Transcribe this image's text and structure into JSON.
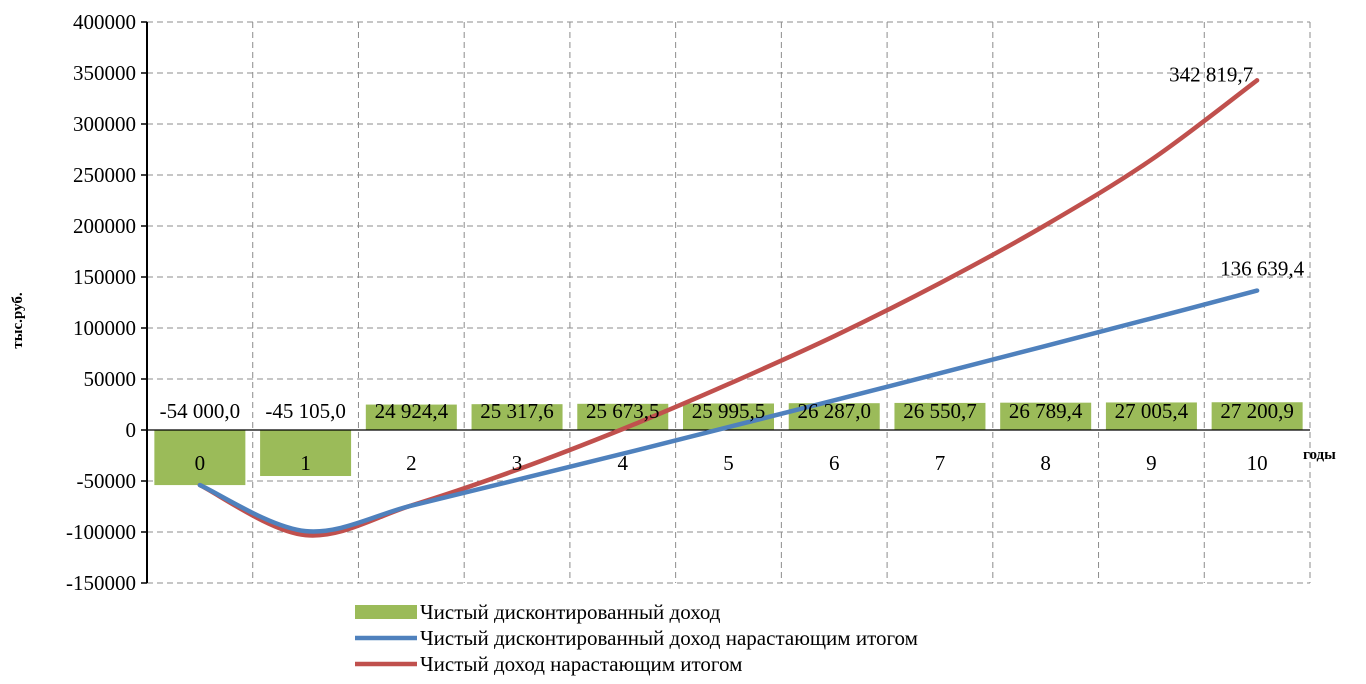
{
  "chart_data": {
    "type": "bar",
    "categories": [
      "0",
      "1",
      "2",
      "3",
      "4",
      "5",
      "6",
      "7",
      "8",
      "9",
      "10"
    ],
    "ylabel": "тыс.руб.",
    "xlabel": "годы",
    "ylim": [
      -150000,
      400000
    ],
    "yticks": [
      400000,
      350000,
      300000,
      250000,
      200000,
      150000,
      100000,
      50000,
      0,
      -50000,
      -100000,
      -150000
    ],
    "grid": true,
    "legend_position": "bottom",
    "series": [
      {
        "name": "Чистый дисконтированный доход",
        "type": "bar",
        "color": "#9bbb59",
        "values": [
          -54000.0,
          -45105.0,
          24924.4,
          25317.6,
          25673.5,
          25995.5,
          26287.0,
          26550.7,
          26789.4,
          27005.4,
          27200.9
        ],
        "labels": [
          "-54 000,0",
          "-45 105,0",
          "24 924,4",
          "25 317,6",
          "25 673,5",
          "25 995,5",
          "26 287,0",
          "26 550,7",
          "26 789,4",
          "27 005,4",
          "27 200,9"
        ]
      },
      {
        "name": "Чистый дисконтированный доход нарастающим итогом",
        "type": "line",
        "color": "#4f81bd",
        "values": [
          -54000.0,
          -99105.0,
          -74180.6,
          -48863.0,
          -23189.5,
          2806.0,
          29093.0,
          55643.7,
          82433.1,
          109438.5,
          136639.4
        ],
        "end_label": "136 639,4"
      },
      {
        "name": "Чистый доход нарастающим итогом",
        "type": "line",
        "color": "#c0504d",
        "values": [
          -54000.0,
          -103000.0,
          -74000.0,
          -39000.0,
          1000.0,
          45000.0,
          92000.0,
          144000.0,
          201000.0,
          265000.0,
          342819.7
        ],
        "end_label": "342 819,7"
      }
    ]
  }
}
